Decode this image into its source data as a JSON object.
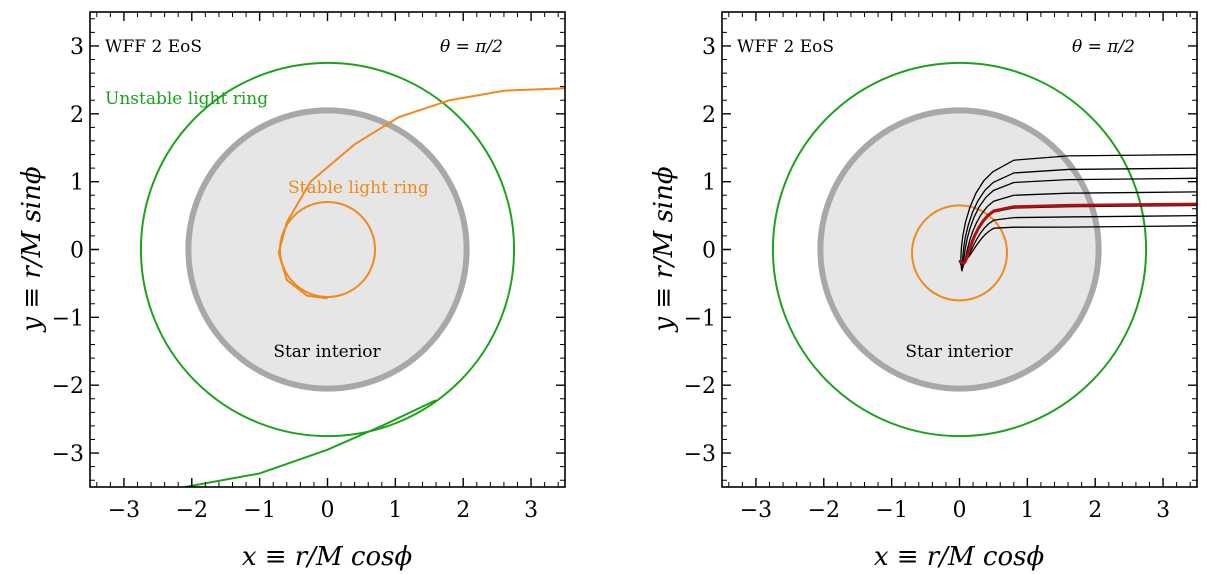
{
  "chart_data": [
    {
      "type": "line",
      "xlabel": "x ≡ r/M cosϕ",
      "ylabel": "y ≡ r/M sinϕ",
      "xlim": [
        -3.5,
        3.5
      ],
      "ylim": [
        -3.5,
        3.5
      ],
      "xticks": [
        -3,
        -2,
        -1,
        0,
        1,
        2,
        3
      ],
      "yticks": [
        -3,
        -2,
        -1,
        0,
        1,
        2,
        3
      ],
      "annotations": {
        "eos": "WFF 2 EoS",
        "angle": "θ = π/2",
        "star_interior": "Star interior",
        "unstable_ring": "Unstable light ring",
        "stable_ring": "Stable light ring"
      },
      "star_radius": 2.05,
      "unstable_ring_radius": 2.75,
      "stable_ring_radius": 0.7,
      "colors": {
        "unstable": "#1aa31a",
        "stable": "#f08a1c",
        "star_fill": "#e6e6e6",
        "star_edge": "#a8a8a8"
      }
    },
    {
      "type": "line",
      "xlabel": "x ≡ r/M cosϕ",
      "ylabel": "y ≡ r/M sinϕ",
      "xlim": [
        -3.5,
        3.5
      ],
      "ylim": [
        -3.5,
        3.5
      ],
      "xticks": [
        -3,
        -2,
        -1,
        0,
        1,
        2,
        3
      ],
      "yticks": [
        -3,
        -2,
        -1,
        0,
        1,
        2,
        3
      ],
      "annotations": {
        "eos": "WFF 2 EoS",
        "angle": "θ = π/2",
        "star_interior": "Star interior"
      },
      "star_radius": 2.05,
      "unstable_ring_radius": 2.75,
      "stable_ring_radius": 0.7,
      "impact_parameters": [
        0.35,
        0.5,
        0.65,
        0.85,
        1.05,
        1.2,
        1.4
      ],
      "highlighted_impact_parameter": 0.67,
      "colors": {
        "unstable": "#1aa31a",
        "stable": "#f08a1c",
        "star_fill": "#e6e6e6",
        "star_edge": "#a8a8a8",
        "rays": "#000000",
        "highlight": "#b01010"
      }
    }
  ]
}
